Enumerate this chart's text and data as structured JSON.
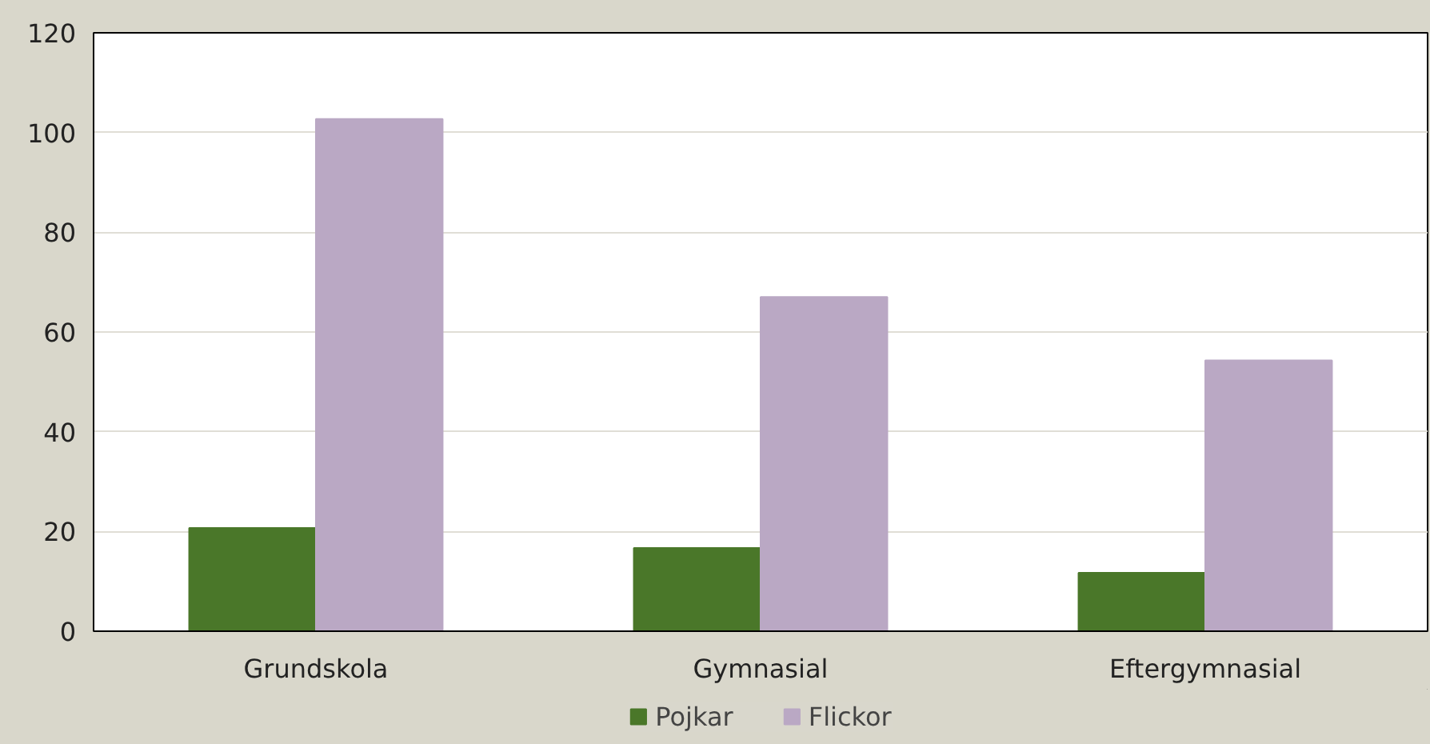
{
  "chart_data": {
    "type": "bar",
    "categories": [
      "Grundskola",
      "Gymnasial",
      "Eftergymnasial"
    ],
    "series": [
      {
        "name": "Pojkar",
        "color": "#4a7729",
        "values": [
          20.7,
          16.7,
          11.7
        ]
      },
      {
        "name": "Flickor",
        "color": "#baa8c4",
        "values": [
          102.7,
          67,
          54.3
        ]
      }
    ],
    "ylim": [
      0,
      120
    ],
    "yticks": [
      0,
      20,
      40,
      60,
      80,
      100,
      120
    ],
    "grid": "y",
    "legend": "bottom"
  }
}
